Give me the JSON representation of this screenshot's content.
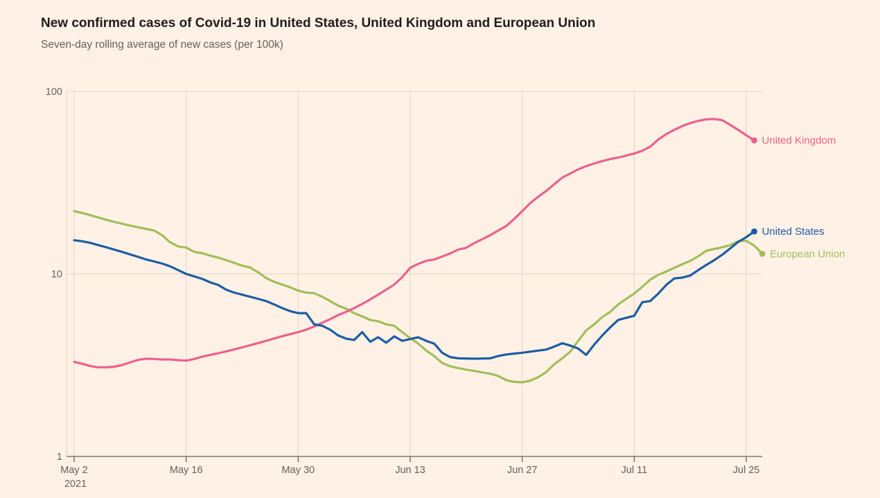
{
  "header": {
    "title": "New confirmed cases of Covid-19 in United States, United Kingdom and European Union",
    "subtitle": "Seven-day rolling average of new cases (per 100k)"
  },
  "chart_data": {
    "type": "line",
    "title": "New confirmed cases of Covid-19 in United States, United Kingdom and European Union",
    "subtitle": "Seven-day rolling average of new cases (per 100k)",
    "grid": true,
    "legend_position": "line-end-labels",
    "y_axis": {
      "scale": "log",
      "range": [
        1,
        100
      ],
      "tick_labels": [
        "1",
        "10",
        "100"
      ],
      "tick_values": [
        1,
        10,
        100
      ]
    },
    "x_axis": {
      "unit": "days since May 2 2021",
      "year_label": "2021",
      "ticks": [
        {
          "label": "May 2",
          "day": 0
        },
        {
          "label": "May 16",
          "day": 14
        },
        {
          "label": "May 30",
          "day": 28
        },
        {
          "label": "Jun 13",
          "day": 42
        },
        {
          "label": "Jun 27",
          "day": 56
        },
        {
          "label": "Jul 11",
          "day": 70
        },
        {
          "label": "Jul 25",
          "day": 84
        }
      ]
    },
    "series": [
      {
        "name": "European Union",
        "color": "#A2BD5A",
        "start_day": 0,
        "values": [
          22.1,
          21.6,
          21.0,
          20.4,
          19.8,
          19.3,
          18.85,
          18.4,
          18.0,
          17.65,
          17.3,
          16.3,
          14.9,
          14.15,
          13.95,
          13.2,
          13.0,
          12.6,
          12.3,
          11.9,
          11.5,
          11.1,
          10.85,
          10.2,
          9.5,
          9.05,
          8.75,
          8.45,
          8.1,
          7.9,
          7.85,
          7.5,
          7.1,
          6.7,
          6.45,
          6.1,
          5.85,
          5.6,
          5.5,
          5.3,
          5.2,
          4.8,
          4.45,
          4.15,
          3.8,
          3.55,
          3.25,
          3.12,
          3.05,
          2.99,
          2.94,
          2.89,
          2.84,
          2.76,
          2.62,
          2.56,
          2.55,
          2.6,
          2.72,
          2.9,
          3.2,
          3.45,
          3.75,
          4.3,
          4.9,
          5.3,
          5.8,
          6.2,
          6.8,
          7.3,
          7.8,
          8.5,
          9.3,
          9.9,
          10.3,
          10.8,
          11.3,
          11.8,
          12.5,
          13.4,
          13.7,
          14.0,
          14.4,
          15.1,
          15.2,
          14.3,
          12.9
        ]
      },
      {
        "name": "United Kingdom",
        "color": "#EC608F",
        "start_day": 0,
        "values": [
          3.3,
          3.22,
          3.13,
          3.08,
          3.08,
          3.1,
          3.17,
          3.28,
          3.38,
          3.43,
          3.42,
          3.4,
          3.4,
          3.37,
          3.35,
          3.42,
          3.52,
          3.6,
          3.68,
          3.76,
          3.86,
          3.96,
          4.07,
          4.18,
          4.3,
          4.43,
          4.56,
          4.68,
          4.8,
          4.95,
          5.15,
          5.4,
          5.65,
          5.95,
          6.2,
          6.5,
          6.85,
          7.25,
          7.7,
          8.2,
          8.75,
          9.6,
          10.8,
          11.35,
          11.8,
          12.0,
          12.45,
          12.95,
          13.6,
          13.9,
          14.75,
          15.5,
          16.3,
          17.3,
          18.3,
          20.0,
          22.1,
          24.4,
          26.5,
          28.5,
          31.0,
          33.7,
          35.5,
          37.4,
          39.0,
          40.3,
          41.5,
          42.6,
          43.4,
          44.5,
          45.7,
          47.3,
          49.8,
          54.5,
          58.4,
          61.5,
          64.6,
          67.0,
          69.0,
          70.3,
          70.6,
          69.6,
          65.5,
          61.5,
          57.5,
          53.9
        ]
      },
      {
        "name": "United States",
        "color": "#1B5CA5",
        "start_day": 0,
        "values": [
          15.3,
          15.1,
          14.8,
          14.4,
          14.0,
          13.6,
          13.2,
          12.8,
          12.4,
          12.0,
          11.7,
          11.4,
          11.0,
          10.5,
          10.0,
          9.7,
          9.4,
          9.0,
          8.7,
          8.2,
          7.9,
          7.7,
          7.5,
          7.3,
          7.1,
          6.8,
          6.5,
          6.25,
          6.1,
          6.1,
          5.3,
          5.2,
          4.95,
          4.6,
          4.42,
          4.35,
          4.8,
          4.25,
          4.5,
          4.2,
          4.55,
          4.3,
          4.4,
          4.5,
          4.3,
          4.15,
          3.7,
          3.5,
          3.45,
          3.44,
          3.43,
          3.44,
          3.45,
          3.55,
          3.62,
          3.66,
          3.7,
          3.75,
          3.8,
          3.85,
          4.0,
          4.17,
          4.05,
          3.9,
          3.6,
          4.1,
          4.6,
          5.1,
          5.6,
          5.75,
          5.9,
          7.0,
          7.1,
          7.8,
          8.7,
          9.45,
          9.55,
          9.8,
          10.5,
          11.2,
          11.9,
          12.75,
          13.8,
          15.0,
          15.9,
          17.1
        ]
      }
    ]
  },
  "colors": {
    "background": "#FFF1E5",
    "gridline": "#EAD9C8",
    "axis_line": "#66605C",
    "tick_text": "#66605C",
    "title_text": "#1F1D1B"
  }
}
